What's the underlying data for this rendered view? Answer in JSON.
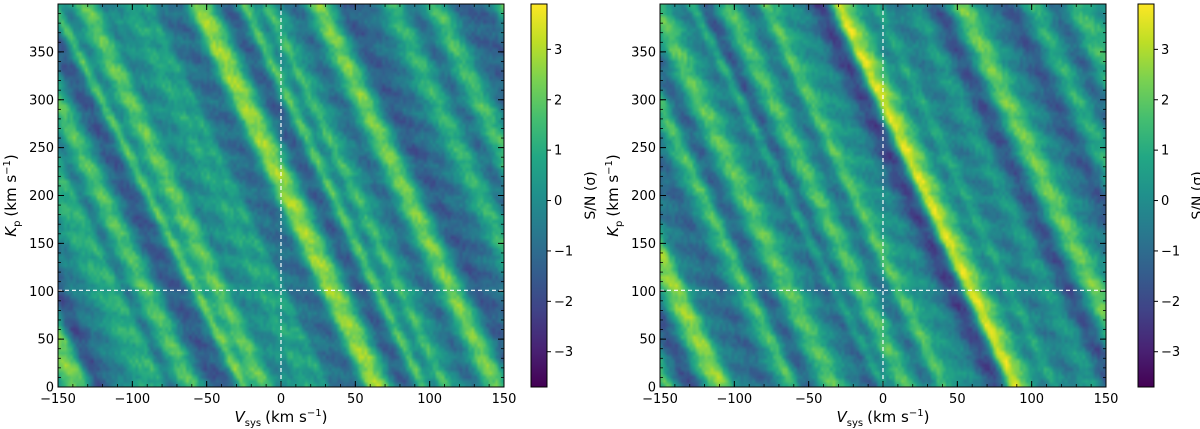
{
  "chart_data": [
    {
      "type": "heatmap",
      "xlabel_main": "V",
      "xlabel_sub": "sys",
      "xlabel_unit": "(km s",
      "xlabel_exp": "−1",
      "xlabel_close": ")",
      "ylabel_main": "K",
      "ylabel_sub": "p",
      "ylabel_unit": "(km s",
      "ylabel_exp": "−1",
      "ylabel_close": ")",
      "xlim": [
        -150,
        150
      ],
      "ylim": [
        0,
        400
      ],
      "xticks": [
        -150,
        -100,
        -50,
        0,
        50,
        100,
        150
      ],
      "xtick_labels": [
        "−150",
        "−100",
        "−50",
        "0",
        "50",
        "100",
        "150"
      ],
      "yticks": [
        0,
        50,
        100,
        150,
        200,
        250,
        300,
        350
      ],
      "ytick_labels": [
        "0",
        "50",
        "100",
        "150",
        "200",
        "250",
        "300",
        "350"
      ],
      "colorbar_label": "S/N (σ)",
      "colorbar_ticks": [
        -3,
        -2,
        -1,
        0,
        1,
        2,
        3
      ],
      "colorbar_tick_labels": [
        "−3",
        "−2",
        "−1",
        "0",
        "1",
        "2",
        "3"
      ],
      "clim": [
        -3.7,
        3.9
      ],
      "colormap": "viridis",
      "dashed_lines": {
        "x": 0,
        "y": 101
      },
      "streaks": [
        {
          "v0": -25,
          "slope": -0.32,
          "amp": 2.8
        },
        {
          "v0": -80,
          "slope": -0.3,
          "amp": 1.5
        },
        {
          "v0": 30,
          "slope": -0.3,
          "amp": 1.4
        },
        {
          "v0": 95,
          "slope": -0.3,
          "amp": 2.0
        },
        {
          "v0": 110,
          "slope": -0.3,
          "amp": 1.6
        },
        {
          "v0": -130,
          "slope": -0.3,
          "amp": 1.4
        },
        {
          "v0": 5,
          "slope": -0.3,
          "amp": 1.1
        },
        {
          "v0": 60,
          "slope": -0.3,
          "amp": 1.0
        }
      ]
    },
    {
      "type": "heatmap",
      "xlabel_main": "V",
      "xlabel_sub": "sys",
      "xlabel_unit": "(km s",
      "xlabel_exp": "−1",
      "xlabel_close": ")",
      "ylabel_main": "K",
      "ylabel_sub": "p",
      "ylabel_unit": "(km s",
      "ylabel_exp": "−1",
      "ylabel_close": ")",
      "xlim": [
        -150,
        150
      ],
      "ylim": [
        0,
        400
      ],
      "xticks": [
        -150,
        -100,
        -50,
        0,
        50,
        100,
        150
      ],
      "xtick_labels": [
        "−150",
        "−100",
        "−50",
        "0",
        "50",
        "100",
        "150"
      ],
      "yticks": [
        0,
        50,
        100,
        150,
        200,
        250,
        300,
        350
      ],
      "ytick_labels": [
        "0",
        "50",
        "100",
        "150",
        "200",
        "250",
        "300",
        "350"
      ],
      "colorbar_label": "S/N (σ)",
      "colorbar_ticks": [
        -3,
        -2,
        -1,
        0,
        1,
        2,
        3
      ],
      "colorbar_tick_labels": [
        "−3",
        "−2",
        "−1",
        "0",
        "1",
        "2",
        "3"
      ],
      "clim": [
        -3.7,
        3.9
      ],
      "colormap": "viridis",
      "dashed_lines": {
        "x": 0,
        "y": 101
      },
      "streaks": [
        {
          "v0": 0,
          "slope": -0.32,
          "amp": 2.4
        },
        {
          "v0": 88,
          "slope": -0.3,
          "amp": 2.2
        },
        {
          "v0": -145,
          "slope": -0.3,
          "amp": 1.6
        },
        {
          "v0": 40,
          "slope": -0.3,
          "amp": 1.2
        },
        {
          "v0": -60,
          "slope": -0.3,
          "amp": 1.0
        },
        {
          "v0": 115,
          "slope": -0.3,
          "amp": 1.1
        },
        {
          "v0": -105,
          "slope": -0.3,
          "amp": 0.9
        }
      ]
    }
  ]
}
